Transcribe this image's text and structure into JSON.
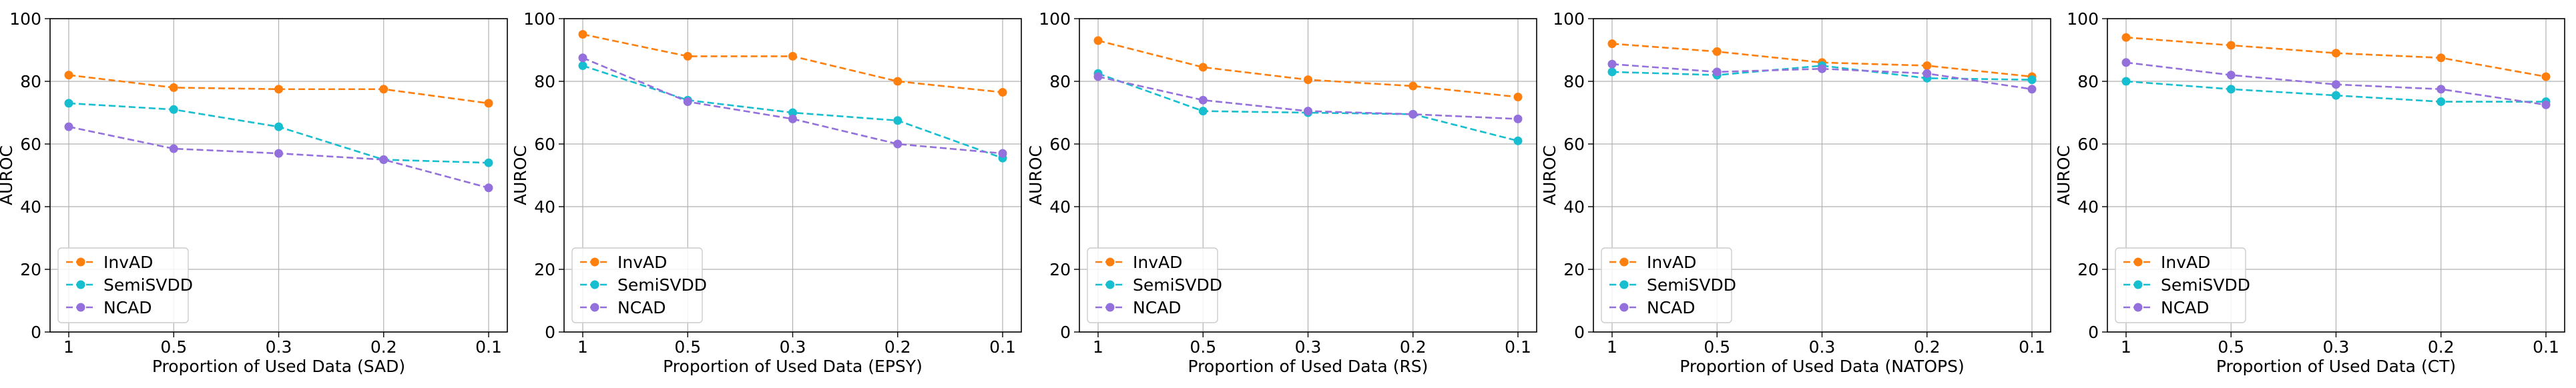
{
  "chart_data": [
    {
      "type": "line",
      "title": "",
      "xlabel": "Proportion of Used Data (SAD)",
      "ylabel": "AUROC",
      "categories": [
        "1",
        "0.5",
        "0.3",
        "0.2",
        "0.1"
      ],
      "ylim": [
        0,
        100
      ],
      "yticks": [
        0,
        20,
        40,
        60,
        80,
        100
      ],
      "grid": true,
      "legend_position": "lower-left",
      "series": [
        {
          "name": "InvAD",
          "color": "#ff7f0e",
          "values": [
            82,
            78,
            77.5,
            77.5,
            73
          ]
        },
        {
          "name": "SemiSVDD",
          "color": "#17becf",
          "values": [
            73,
            71,
            65.5,
            55,
            54
          ]
        },
        {
          "name": "NCAD",
          "color": "#9370db",
          "values": [
            65.5,
            58.5,
            57,
            55,
            46
          ]
        }
      ]
    },
    {
      "type": "line",
      "title": "",
      "xlabel": "Proportion of Used Data (EPSY)",
      "ylabel": "AUROC",
      "categories": [
        "1",
        "0.5",
        "0.3",
        "0.2",
        "0.1"
      ],
      "ylim": [
        0,
        100
      ],
      "yticks": [
        0,
        20,
        40,
        60,
        80,
        100
      ],
      "grid": true,
      "legend_position": "lower-left",
      "series": [
        {
          "name": "InvAD",
          "color": "#ff7f0e",
          "values": [
            95,
            88,
            88,
            80,
            76.5
          ]
        },
        {
          "name": "SemiSVDD",
          "color": "#17becf",
          "values": [
            85,
            74,
            70,
            67.5,
            55.5
          ]
        },
        {
          "name": "NCAD",
          "color": "#9370db",
          "values": [
            87.5,
            73.5,
            68,
            60,
            57
          ]
        }
      ]
    },
    {
      "type": "line",
      "title": "",
      "xlabel": "Proportion of Used Data (RS)",
      "ylabel": "AUROC",
      "categories": [
        "1",
        "0.5",
        "0.3",
        "0.2",
        "0.1"
      ],
      "ylim": [
        0,
        100
      ],
      "yticks": [
        0,
        20,
        40,
        60,
        80,
        100
      ],
      "grid": true,
      "legend_position": "lower-left",
      "series": [
        {
          "name": "InvAD",
          "color": "#ff7f0e",
          "values": [
            93,
            84.5,
            80.5,
            78.5,
            75
          ]
        },
        {
          "name": "SemiSVDD",
          "color": "#17becf",
          "values": [
            82.5,
            70.5,
            70,
            69.5,
            61
          ]
        },
        {
          "name": "NCAD",
          "color": "#9370db",
          "values": [
            81.5,
            74,
            70.5,
            69.5,
            68
          ]
        }
      ]
    },
    {
      "type": "line",
      "title": "",
      "xlabel": "Proportion of Used Data (NATOPS)",
      "ylabel": "AUROC",
      "categories": [
        "1",
        "0.5",
        "0.3",
        "0.2",
        "0.1"
      ],
      "ylim": [
        0,
        100
      ],
      "yticks": [
        0,
        20,
        40,
        60,
        80,
        100
      ],
      "grid": true,
      "legend_position": "lower-left",
      "series": [
        {
          "name": "InvAD",
          "color": "#ff7f0e",
          "values": [
            92,
            89.5,
            86,
            85,
            81.5
          ]
        },
        {
          "name": "SemiSVDD",
          "color": "#17becf",
          "values": [
            83,
            82,
            85,
            81,
            80.5
          ]
        },
        {
          "name": "NCAD",
          "color": "#9370db",
          "values": [
            85.5,
            83,
            84,
            82.5,
            77.5
          ]
        }
      ]
    },
    {
      "type": "line",
      "title": "",
      "xlabel": "Proportion of Used Data (CT)",
      "ylabel": "AUROC",
      "categories": [
        "1",
        "0.5",
        "0.3",
        "0.2",
        "0.1"
      ],
      "ylim": [
        0,
        100
      ],
      "yticks": [
        0,
        20,
        40,
        60,
        80,
        100
      ],
      "grid": true,
      "legend_position": "lower-left",
      "series": [
        {
          "name": "InvAD",
          "color": "#ff7f0e",
          "values": [
            94,
            91.5,
            89,
            87.5,
            81.5
          ]
        },
        {
          "name": "SemiSVDD",
          "color": "#17becf",
          "values": [
            80,
            77.5,
            75.5,
            73.5,
            73.5
          ]
        },
        {
          "name": "NCAD",
          "color": "#9370db",
          "values": [
            86,
            82,
            79,
            77.5,
            72.5
          ]
        }
      ]
    }
  ]
}
